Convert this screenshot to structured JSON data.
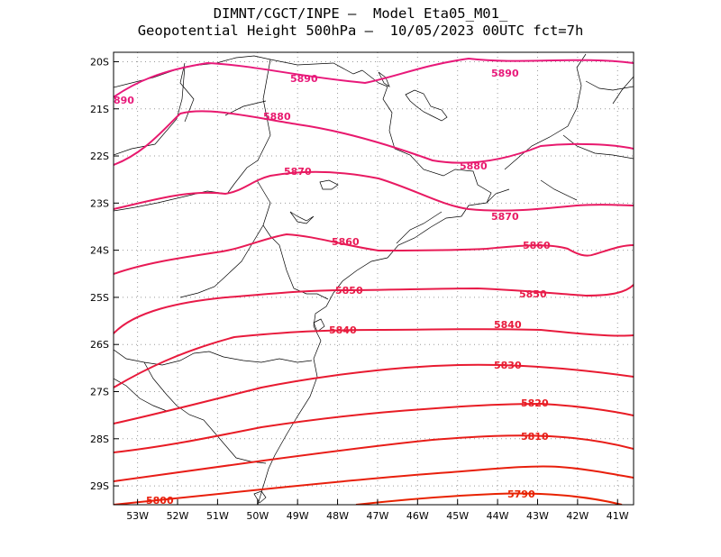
{
  "title": {
    "line1": "DIMNT/CGCT/INPE –  Model Eta05_M01_",
    "line2": "Geopotential Height 500hPa –  10/05/2023 00UTC fct=7h"
  },
  "map": {
    "type": "contour",
    "variable": "Geopotential Height 500hPa",
    "lon_range": [
      -53.6,
      -40.6
    ],
    "lat_range": [
      -29.4,
      -19.8
    ],
    "x_ticks": [
      "53W",
      "52W",
      "51W",
      "50W",
      "49W",
      "48W",
      "47W",
      "46W",
      "45W",
      "44W",
      "43W",
      "42W",
      "41W"
    ],
    "y_ticks": [
      "20S",
      "21S",
      "22S",
      "23S",
      "24S",
      "25S",
      "26S",
      "27S",
      "28S",
      "29S"
    ],
    "grid": "dotted",
    "contour_levels": [
      5790,
      5800,
      5810,
      5820,
      5830,
      5840,
      5850,
      5860,
      5870,
      5880,
      5890
    ],
    "contour_labels": [
      {
        "text": "890",
        "level": 5890
      },
      {
        "text": "5890",
        "level": 5890
      },
      {
        "text": "5890",
        "level": 5890
      },
      {
        "text": "5880",
        "level": 5880
      },
      {
        "text": "5880",
        "level": 5880
      },
      {
        "text": "5870",
        "level": 5870
      },
      {
        "text": "5870",
        "level": 5870
      },
      {
        "text": "5860",
        "level": 5860
      },
      {
        "text": "5860",
        "level": 5860
      },
      {
        "text": "5850",
        "level": 5850
      },
      {
        "text": "5850",
        "level": 5850
      },
      {
        "text": "5840",
        "level": 5840
      },
      {
        "text": "5840",
        "level": 5840
      },
      {
        "text": "5830",
        "level": 5830
      },
      {
        "text": "5820",
        "level": 5820
      },
      {
        "text": "5810",
        "level": 5810
      },
      {
        "text": "5800",
        "level": 5800
      },
      {
        "text": "5790",
        "level": 5790
      }
    ],
    "colors": {
      "5890": "#e8197a",
      "5880": "#e8196e",
      "5870": "#e81a62",
      "5860": "#e81a55",
      "5850": "#e81a48",
      "5840": "#e81a3c",
      "5830": "#e81a30",
      "5820": "#e81c24",
      "5810": "#e81d18",
      "5800": "#e81f0c",
      "5790": "#e82200",
      "coastline": "#000000",
      "grid": "#999999"
    }
  }
}
